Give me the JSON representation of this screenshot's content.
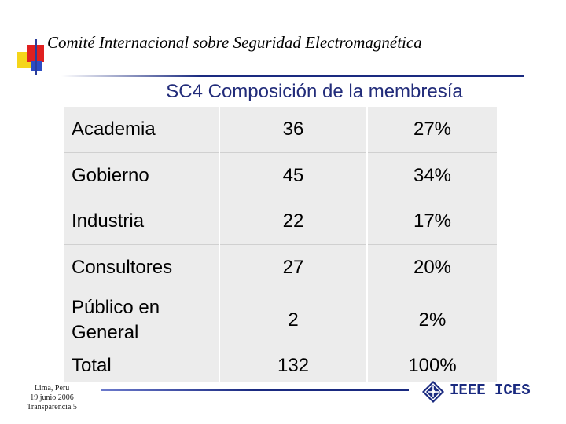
{
  "header": {
    "title": "Comité Internacional sobre Seguridad Electromagnética"
  },
  "slide": {
    "title": "SC4 Composición de la membresía"
  },
  "table": {
    "rows": [
      {
        "name": "Academia",
        "count": "36",
        "percent": "27%"
      },
      {
        "name": "Gobierno",
        "count": "45",
        "percent": "34%"
      },
      {
        "name": "Industria",
        "count": "22",
        "percent": "17%"
      },
      {
        "name": "Consultores",
        "count": "27",
        "percent": "20%"
      },
      {
        "name": "Público en General",
        "count": "2",
        "percent": "2%"
      },
      {
        "name": "Total",
        "count": "132",
        "percent": "100%"
      }
    ]
  },
  "footer": {
    "location": "Lima, Peru",
    "date": "19 junio 2006",
    "slide_number": "Transparencia 5",
    "brand": "IEEE ICES",
    "logo_icon": "ieee-diamond-icon"
  },
  "colors": {
    "title_blue": "#222c7a",
    "rule_navy": "#1a2a80",
    "accent_red": "#e02020",
    "accent_yellow": "#f5d51a",
    "accent_blue": "#2b4cc4",
    "cell_shade": "#ececec"
  }
}
